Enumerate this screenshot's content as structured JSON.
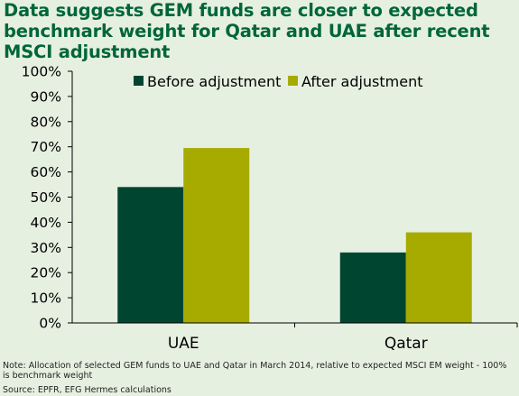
{
  "colors": {
    "title": "#00663a",
    "before": "#004530",
    "after": "#a7ab00",
    "background": "#e6f0e1",
    "axis": "#000000"
  },
  "title": "Data suggests GEM funds are closer to expected benchmark weight for Qatar and UAE after recent MSCI adjustment",
  "note": "Note: Allocation of selected GEM funds to UAE and Qatar in March 2014, relative to expected MSCI EM weight - 100% is benchmark weight",
  "source": "Source: EPFR, EFG Hermes calculations",
  "chart_data": {
    "type": "bar",
    "categories": [
      "UAE",
      "Qatar"
    ],
    "series": [
      {
        "name": "Before adjustment",
        "values": [
          54,
          28
        ],
        "color": "#004530"
      },
      {
        "name": "After adjustment",
        "values": [
          69.5,
          36
        ],
        "color": "#a7ab00"
      }
    ],
    "ylim": [
      0,
      100
    ],
    "yticks": [
      "0%",
      "10%",
      "20%",
      "30%",
      "40%",
      "50%",
      "60%",
      "70%",
      "80%",
      "90%",
      "100%"
    ],
    "grid": false,
    "legend": "top-center"
  }
}
